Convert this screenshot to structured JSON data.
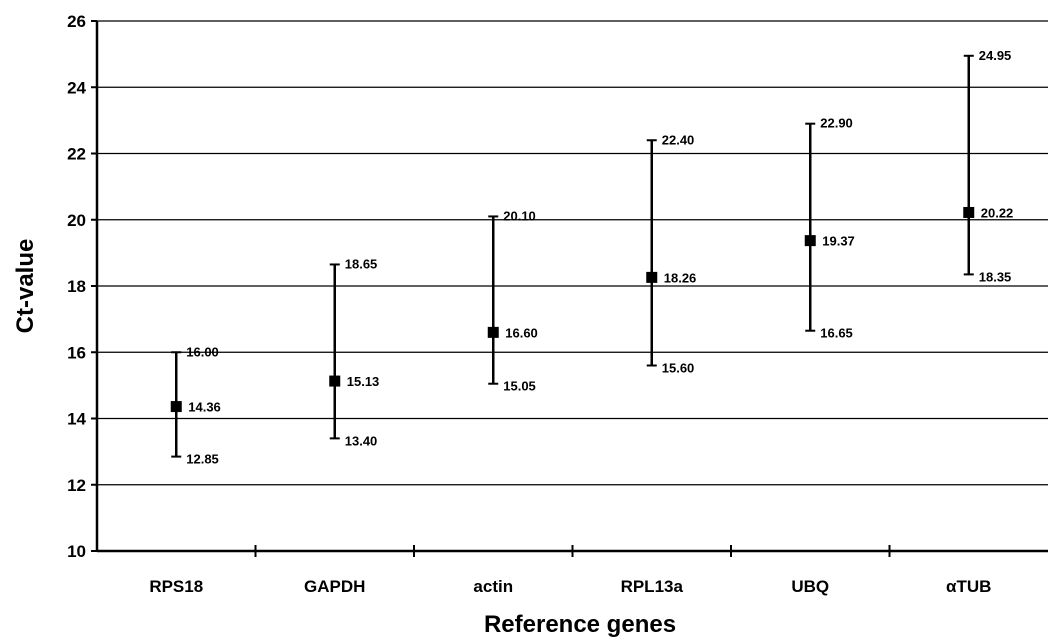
{
  "chart_data": {
    "type": "scatter",
    "title": "",
    "xlabel": "Reference genes",
    "ylabel": "Ct-value",
    "ylim": [
      10,
      26
    ],
    "yticks": [
      10,
      12,
      14,
      16,
      18,
      20,
      22,
      24,
      26
    ],
    "grid": true,
    "categories": [
      "RPS18",
      "GAPDH",
      "actin",
      "RPL13a",
      "UBQ",
      "αTUB"
    ],
    "series": [
      {
        "values": [
          14.36,
          15.13,
          16.6,
          18.26,
          19.37,
          20.22
        ],
        "max": [
          16.0,
          18.65,
          20.1,
          22.4,
          22.9,
          24.95
        ],
        "min": [
          12.85,
          13.4,
          15.05,
          15.6,
          16.65,
          18.35
        ],
        "value_labels": [
          "14.36",
          "15.13",
          "16.60",
          "18.26",
          "19.37",
          "20.22"
        ],
        "max_labels": [
          "16.00",
          "18.65",
          "20.10",
          "22.40",
          "22.90",
          "24.95"
        ],
        "min_labels": [
          "12.85",
          "13.40",
          "15.05",
          "15.60",
          "16.65",
          "18.35"
        ]
      }
    ],
    "colors": {
      "marker": "#000000",
      "grid": "#000000",
      "axis": "#000000"
    }
  }
}
